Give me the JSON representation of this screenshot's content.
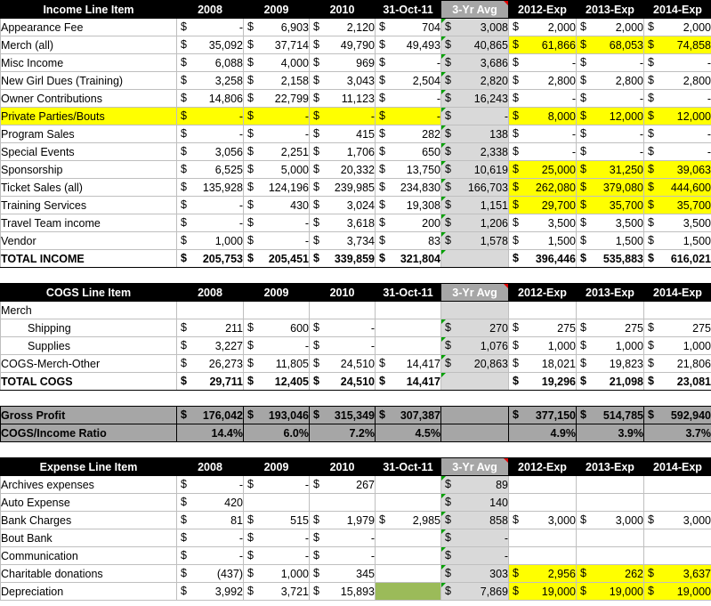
{
  "income": {
    "header": [
      "Income Line Item",
      "2008",
      "2009",
      "2010",
      "31-Oct-11",
      "3-Yr Avg",
      "2012-Exp",
      "2013-Exp",
      "2014-Exp"
    ],
    "rows": [
      {
        "label": "Appearance Fee",
        "cells": [
          "-",
          "6,903",
          "2,120",
          "704",
          "3,008",
          "2,000",
          "2,000",
          "2,000"
        ]
      },
      {
        "label": "Merch (all)",
        "cells": [
          "35,092",
          "37,714",
          "49,790",
          "49,493",
          "40,865",
          "61,866",
          "68,053",
          "74,858"
        ],
        "yellow_proj": true
      },
      {
        "label": "Misc Income",
        "cells": [
          "6,088",
          "4,000",
          "969",
          "-",
          "3,686",
          "-",
          "-",
          "-"
        ]
      },
      {
        "label": "New Girl Dues (Training)",
        "cells": [
          "3,258",
          "2,158",
          "3,043",
          "2,504",
          "2,820",
          "2,800",
          "2,800",
          "2,800"
        ]
      },
      {
        "label": "Owner Contributions",
        "cells": [
          "14,806",
          "22,799",
          "11,123",
          "-",
          "16,243",
          "-",
          "-",
          "-"
        ]
      },
      {
        "label": "Private Parties/Bouts",
        "cells": [
          "-",
          "-",
          "-",
          "-",
          "-",
          "8,000",
          "12,000",
          "12,000"
        ],
        "yellow_row": true
      },
      {
        "label": "Program Sales",
        "cells": [
          "-",
          "-",
          "415",
          "282",
          "138",
          "-",
          "-",
          "-"
        ]
      },
      {
        "label": "Special Events",
        "cells": [
          "3,056",
          "2,251",
          "1,706",
          "650",
          "2,338",
          "-",
          "-",
          "-"
        ]
      },
      {
        "label": "Sponsorship",
        "cells": [
          "6,525",
          "5,000",
          "20,332",
          "13,750",
          "10,619",
          "25,000",
          "31,250",
          "39,063"
        ],
        "yellow_proj": true
      },
      {
        "label": "Ticket Sales (all)",
        "cells": [
          "135,928",
          "124,196",
          "239,985",
          "234,830",
          "166,703",
          "262,080",
          "379,080",
          "444,600"
        ],
        "yellow_proj": true
      },
      {
        "label": "Training Services",
        "cells": [
          "-",
          "430",
          "3,024",
          "19,308",
          "1,151",
          "29,700",
          "35,700",
          "35,700"
        ],
        "yellow_proj": true
      },
      {
        "label": "Travel Team income",
        "cells": [
          "-",
          "-",
          "3,618",
          "200",
          "1,206",
          "3,500",
          "3,500",
          "3,500"
        ]
      },
      {
        "label": "Vendor",
        "cells": [
          "1,000",
          "-",
          "3,734",
          "83",
          "1,578",
          "1,500",
          "1,500",
          "1,500"
        ]
      }
    ],
    "total": {
      "label": "TOTAL INCOME",
      "cells": [
        "205,753",
        "205,451",
        "339,859",
        "321,804",
        "",
        "396,446",
        "535,883",
        "616,021"
      ]
    }
  },
  "cogs": {
    "header": [
      "COGS Line Item",
      "2008",
      "2009",
      "2010",
      "31-Oct-11",
      "3-Yr Avg",
      "2012-Exp",
      "2013-Exp",
      "2014-Exp"
    ],
    "group_label": "Merch",
    "rows": [
      {
        "label": "Shipping",
        "indent": true,
        "cells": [
          "211",
          "600",
          "-",
          "",
          "270",
          "275",
          "275",
          "275"
        ]
      },
      {
        "label": "Supplies",
        "indent": true,
        "cells": [
          "3,227",
          "-",
          "-",
          "",
          "1,076",
          "1,000",
          "1,000",
          "1,000"
        ]
      },
      {
        "label": "COGS-Merch-Other",
        "cells": [
          "26,273",
          "11,805",
          "24,510",
          "14,417",
          "20,863",
          "18,021",
          "19,823",
          "21,806"
        ]
      }
    ],
    "total": {
      "label": "TOTAL COGS",
      "cells": [
        "29,711",
        "12,405",
        "24,510",
        "14,417",
        "",
        "19,296",
        "21,098",
        "23,081"
      ]
    }
  },
  "gross": {
    "label": "Gross Profit",
    "cells": [
      "176,042",
      "193,046",
      "315,349",
      "307,387",
      "",
      "377,150",
      "514,785",
      "592,940"
    ]
  },
  "ratio": {
    "label": "COGS/Income Ratio",
    "cells": [
      "14.4%",
      "6.0%",
      "7.2%",
      "4.5%",
      "",
      "4.9%",
      "3.9%",
      "3.7%"
    ]
  },
  "expense": {
    "header": [
      "Expense Line Item",
      "2008",
      "2009",
      "2010",
      "31-Oct-11",
      "3-Yr Avg",
      "2012-Exp",
      "2013-Exp",
      "2014-Exp"
    ],
    "rows": [
      {
        "label": "Archives expenses",
        "cells": [
          "-",
          "-",
          "267",
          "",
          "89",
          "",
          "",
          ""
        ]
      },
      {
        "label": "Auto Expense",
        "cells": [
          "420",
          "",
          "",
          "",
          "140",
          "",
          "",
          ""
        ]
      },
      {
        "label": "Bank Charges",
        "cells": [
          "81",
          "515",
          "1,979",
          "2,985",
          "858",
          "3,000",
          "3,000",
          "3,000"
        ]
      },
      {
        "label": "Bout Bank",
        "cells": [
          "-",
          "-",
          "-",
          "",
          "-",
          "",
          "",
          ""
        ]
      },
      {
        "label": "Communication",
        "cells": [
          "-",
          "-",
          "-",
          "",
          "-",
          "",
          "",
          ""
        ]
      },
      {
        "label": "Charitable donations",
        "cells": [
          "(437)",
          "1,000",
          "345",
          "",
          "303",
          "2,956",
          "262",
          "3,637"
        ],
        "yellow_proj": true
      },
      {
        "label": "Depreciation",
        "cells": [
          "3,992",
          "3,721",
          "15,893",
          "",
          "7,869",
          "19,000",
          "19,000",
          "19,000"
        ],
        "yellow_proj": true,
        "green_oct": true
      }
    ]
  },
  "colors": {
    "header_bg": "#000000",
    "avg_bg": "#d9d9d9",
    "highlight": "#ffff00",
    "gross_bg": "#a6a6a6",
    "green_cell": "#9bbb59"
  },
  "currency_symbol": "$"
}
